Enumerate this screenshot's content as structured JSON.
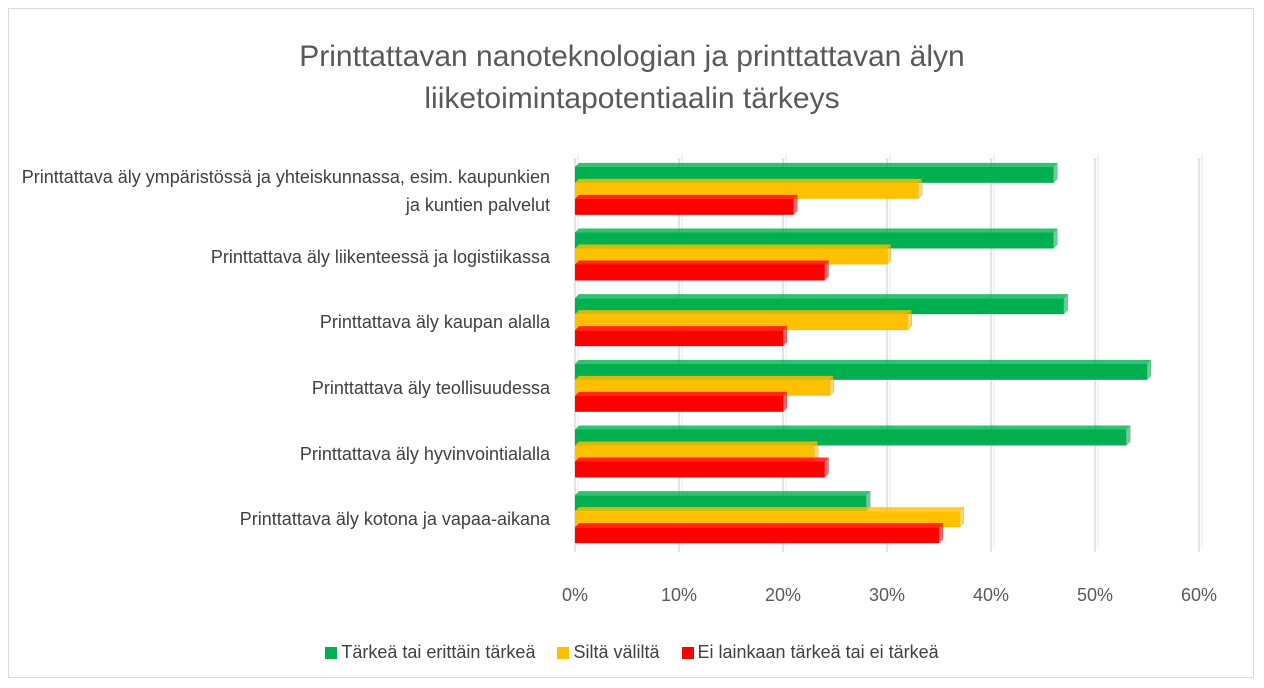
{
  "chart_data": {
    "type": "bar",
    "orientation": "horizontal",
    "title": "Printtattavan nanoteknologian ja printtattavan älyn liiketoimintapotentiaalin tärkeys",
    "categories": [
      "Printtattava äly ympäristössä ja yhteiskunnassa, esim. kaupunkien ja kuntien palvelut",
      "Printtattava äly liikenteessä ja logistiikassa",
      "Printtattava äly kaupan alalla",
      "Printtattava äly teollisuudessa",
      "Printtattava äly hyvinvointialalla",
      "Printtattava äly kotona ja vapaa-aikana"
    ],
    "series": [
      {
        "name": "Tärkeä tai erittäin tärkeä",
        "color": "#00b050",
        "values": [
          46,
          46,
          47,
          55,
          53,
          28
        ]
      },
      {
        "name": "Siltä väliltä",
        "color": "#ffc000",
        "values": [
          33,
          30,
          32,
          24.5,
          23,
          37
        ]
      },
      {
        "name": "Ei lainkaan tärkeä tai ei tärkeä",
        "color": "#ff0000",
        "values": [
          21,
          24,
          20,
          20,
          24,
          35
        ]
      }
    ],
    "xlim": [
      0,
      60
    ],
    "xticks": [
      {
        "value": 0,
        "label": "0%"
      },
      {
        "value": 10,
        "label": "10%"
      },
      {
        "value": 20,
        "label": "20%"
      },
      {
        "value": 30,
        "label": "30%"
      },
      {
        "value": 40,
        "label": "40%"
      },
      {
        "value": 50,
        "label": "50%"
      },
      {
        "value": 60,
        "label": "60%"
      }
    ],
    "grid": true,
    "legend": "bottom"
  }
}
